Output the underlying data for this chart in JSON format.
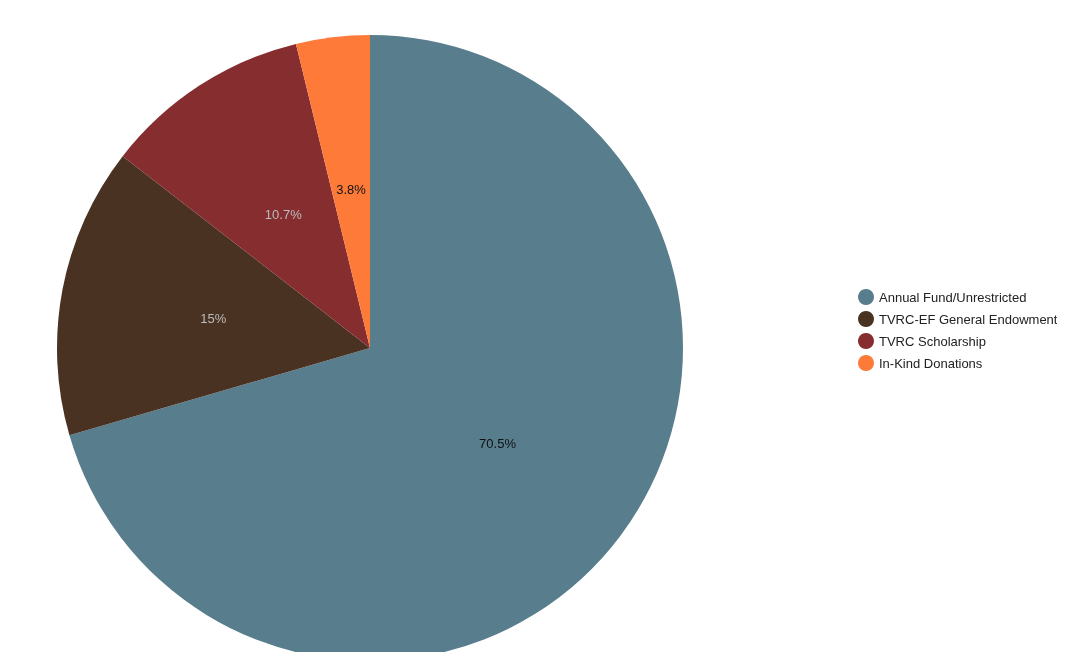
{
  "chart_data": {
    "type": "pie",
    "categories": [
      "Annual Fund/Unrestricted",
      "TVRC-EF General Endowment",
      "TVRC Scholarship",
      "In-Kind Donations"
    ],
    "values": [
      70.5,
      15,
      10.7,
      3.8
    ],
    "colors": [
      "#587d8d",
      "#4a3223",
      "#862d2f",
      "#fd7a39"
    ],
    "value_labels": [
      "70.5%",
      "15%",
      "10.7%",
      "3.8%"
    ],
    "legend": "right"
  }
}
